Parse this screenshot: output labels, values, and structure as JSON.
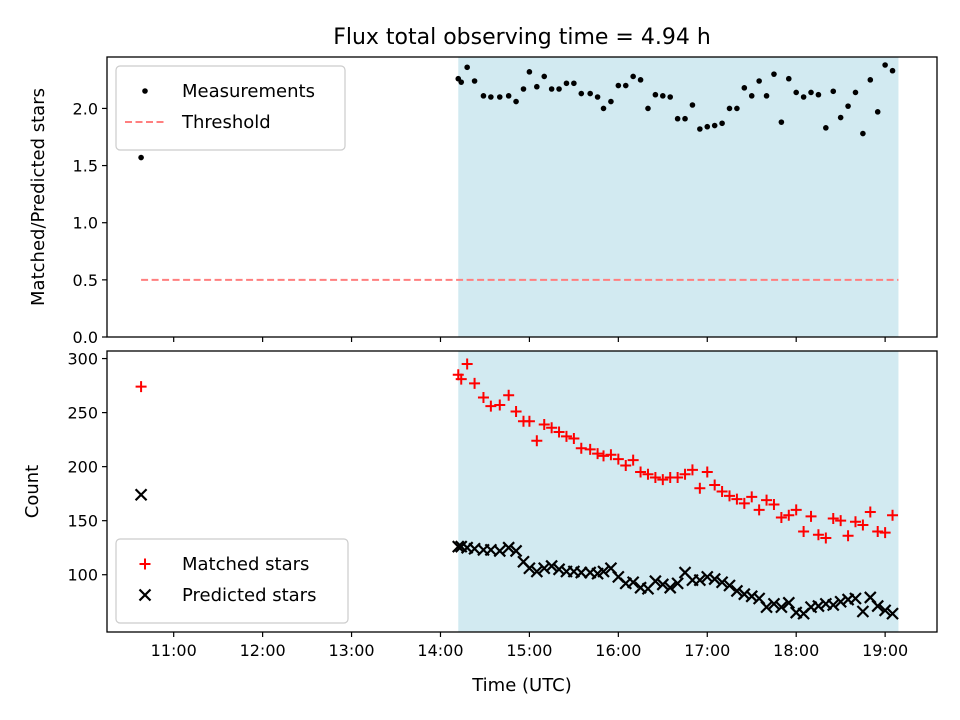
{
  "chart_data": [
    {
      "type": "scatter",
      "title": "Flux total observing time = 4.94 h",
      "ylabel": "Matched/Predicted stars",
      "xlim": [
        "10:15",
        "19:35"
      ],
      "ylim": [
        0,
        2.45
      ],
      "yticks": [
        "0.0",
        "0.5",
        "1.0",
        "1.5",
        "2.0"
      ],
      "grid": false,
      "legend_position": "top-left",
      "observing_window": {
        "start": "14:12",
        "end": "19:09",
        "color": "#add8e6"
      },
      "threshold": {
        "name": "Threshold",
        "value": 0.5,
        "x_start": "10:38",
        "x_end": "19:09",
        "color": "#ff7f7f",
        "style": "dashed"
      },
      "series": [
        {
          "name": "Measurements",
          "color": "#000000",
          "marker": "dot",
          "x": [
            "10:38",
            "14:12",
            "14:14",
            "14:18",
            "14:23",
            "14:29",
            "14:34",
            "14:40",
            "14:46",
            "14:51",
            "14:56",
            "15:00",
            "15:05",
            "15:10",
            "15:15",
            "15:20",
            "15:25",
            "15:30",
            "15:35",
            "15:41",
            "15:46",
            "15:50",
            "15:55",
            "16:00",
            "16:05",
            "16:10",
            "16:15",
            "16:20",
            "16:25",
            "16:30",
            "16:35",
            "16:40",
            "16:45",
            "16:50",
            "16:55",
            "17:00",
            "17:05",
            "17:10",
            "17:15",
            "17:20",
            "17:25",
            "17:30",
            "17:35",
            "17:40",
            "17:45",
            "17:50",
            "17:55",
            "18:00",
            "18:05",
            "18:10",
            "18:15",
            "18:20",
            "18:25",
            "18:30",
            "18:35",
            "18:40",
            "18:45",
            "18:50",
            "18:55",
            "19:00",
            "19:05"
          ],
          "y": [
            1.57,
            2.26,
            2.23,
            2.36,
            2.24,
            2.11,
            2.1,
            2.1,
            2.11,
            2.06,
            2.17,
            2.32,
            2.19,
            2.28,
            2.17,
            2.17,
            2.22,
            2.22,
            2.13,
            2.13,
            2.1,
            2.0,
            2.06,
            2.2,
            2.2,
            2.28,
            2.25,
            2.0,
            2.12,
            2.11,
            2.1,
            1.91,
            1.91,
            2.03,
            1.82,
            1.84,
            1.85,
            1.87,
            2.0,
            2.0,
            2.18,
            2.11,
            2.24,
            2.11,
            2.3,
            1.88,
            2.26,
            2.14,
            2.1,
            2.14,
            2.12,
            1.83,
            2.15,
            1.92,
            2.02,
            2.14,
            1.78,
            2.25,
            1.97,
            2.38,
            2.33
          ]
        }
      ]
    },
    {
      "type": "scatter",
      "xlabel": "Time (UTC)",
      "ylabel": "Count",
      "xlim": [
        "10:15",
        "19:35"
      ],
      "xticks": [
        "11:00",
        "12:00",
        "13:00",
        "14:00",
        "15:00",
        "16:00",
        "17:00",
        "18:00",
        "19:00"
      ],
      "ylim": [
        47,
        307
      ],
      "yticks": [
        "100",
        "150",
        "200",
        "250",
        "300"
      ],
      "grid": false,
      "legend_position": "bottom-left",
      "observing_window": {
        "start": "14:12",
        "end": "19:09",
        "color": "#add8e6"
      },
      "series": [
        {
          "name": "Matched stars",
          "color": "#ff0000",
          "marker": "plus",
          "x": [
            "10:38",
            "14:12",
            "14:14",
            "14:18",
            "14:23",
            "14:29",
            "14:34",
            "14:40",
            "14:46",
            "14:51",
            "14:56",
            "15:00",
            "15:05",
            "15:10",
            "15:15",
            "15:20",
            "15:25",
            "15:30",
            "15:35",
            "15:41",
            "15:46",
            "15:50",
            "15:55",
            "16:00",
            "16:05",
            "16:10",
            "16:15",
            "16:20",
            "16:25",
            "16:30",
            "16:35",
            "16:40",
            "16:45",
            "16:50",
            "16:55",
            "17:00",
            "17:05",
            "17:10",
            "17:15",
            "17:20",
            "17:25",
            "17:30",
            "17:35",
            "17:40",
            "17:45",
            "17:50",
            "17:55",
            "18:00",
            "18:05",
            "18:10",
            "18:15",
            "18:20",
            "18:25",
            "18:30",
            "18:35",
            "18:40",
            "18:45",
            "18:50",
            "18:55",
            "19:00",
            "19:05"
          ],
          "y": [
            274,
            285,
            281,
            295,
            277,
            264,
            256,
            257,
            266,
            251,
            242,
            242,
            224,
            239,
            236,
            232,
            228,
            226,
            217,
            216,
            212,
            210,
            211,
            207,
            201,
            206,
            195,
            193,
            190,
            188,
            190,
            190,
            193,
            197,
            180,
            195,
            183,
            177,
            173,
            170,
            166,
            172,
            160,
            169,
            165,
            153,
            155,
            160,
            140,
            154,
            137,
            134,
            152,
            150,
            136,
            149,
            146,
            158,
            140,
            139,
            155
          ]
        },
        {
          "name": "Predicted stars",
          "color": "#000000",
          "marker": "x",
          "x": [
            "10:38",
            "14:12",
            "14:14",
            "14:18",
            "14:23",
            "14:29",
            "14:34",
            "14:40",
            "14:46",
            "14:51",
            "14:56",
            "15:00",
            "15:05",
            "15:10",
            "15:15",
            "15:20",
            "15:25",
            "15:30",
            "15:35",
            "15:41",
            "15:46",
            "15:50",
            "15:55",
            "16:00",
            "16:05",
            "16:10",
            "16:15",
            "16:20",
            "16:25",
            "16:30",
            "16:35",
            "16:40",
            "16:45",
            "16:50",
            "16:55",
            "17:00",
            "17:05",
            "17:10",
            "17:15",
            "17:20",
            "17:25",
            "17:30",
            "17:35",
            "17:40",
            "17:45",
            "17:50",
            "17:55",
            "18:00",
            "18:05",
            "18:10",
            "18:15",
            "18:20",
            "18:25",
            "18:30",
            "18:35",
            "18:40",
            "18:45",
            "18:50",
            "18:55",
            "19:00",
            "19:05"
          ],
          "y": [
            174,
            126,
            126,
            125,
            124,
            123,
            123,
            122,
            125,
            122,
            112,
            106,
            103,
            106,
            108,
            105,
            103,
            103,
            102,
            102,
            101,
            103,
            106,
            98,
            92,
            93,
            88,
            87,
            94,
            91,
            88,
            92,
            102,
            95,
            95,
            98,
            96,
            93,
            90,
            85,
            82,
            80,
            78,
            70,
            73,
            70,
            74,
            65,
            64,
            70,
            71,
            73,
            72,
            75,
            77,
            78,
            66,
            79,
            71,
            67,
            64
          ]
        }
      ]
    }
  ]
}
